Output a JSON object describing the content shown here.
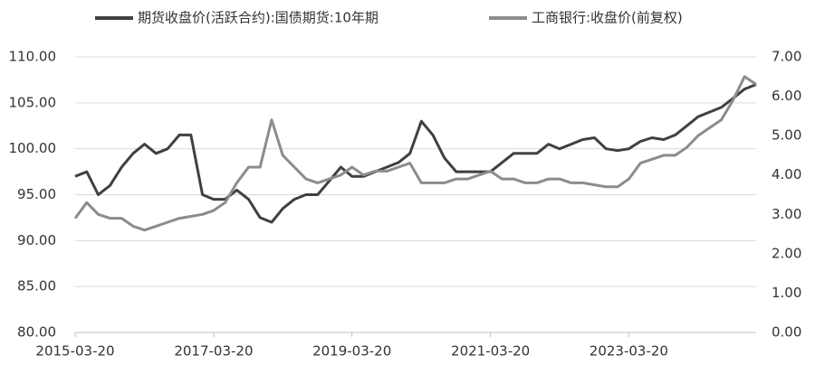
{
  "chart_data": {
    "type": "line",
    "x": [
      "2015-03-20",
      "2015-05-20",
      "2015-07-20",
      "2015-09-20",
      "2015-11-20",
      "2016-01-20",
      "2016-03-20",
      "2016-05-20",
      "2016-07-20",
      "2016-09-20",
      "2016-11-20",
      "2017-01-20",
      "2017-03-20",
      "2017-05-20",
      "2017-07-20",
      "2017-09-20",
      "2017-11-20",
      "2018-01-20",
      "2018-03-20",
      "2018-05-20",
      "2018-07-20",
      "2018-09-20",
      "2018-11-20",
      "2019-01-20",
      "2019-03-20",
      "2019-05-20",
      "2019-07-20",
      "2019-09-20",
      "2019-11-20",
      "2020-01-20",
      "2020-03-20",
      "2020-05-20",
      "2020-07-20",
      "2020-09-20",
      "2020-11-20",
      "2021-01-20",
      "2021-03-20",
      "2021-05-20",
      "2021-07-20",
      "2021-09-20",
      "2021-11-20",
      "2022-01-20",
      "2022-03-20",
      "2022-05-20",
      "2022-07-20",
      "2022-09-20",
      "2022-11-20",
      "2023-01-20",
      "2023-03-20",
      "2023-05-20",
      "2023-07-20",
      "2023-09-20",
      "2023-11-20",
      "2024-01-20",
      "2024-03-20",
      "2024-05-20",
      "2024-07-20",
      "2024-09-20",
      "2024-11-20",
      "2025-01-20"
    ],
    "series": [
      {
        "name": "期货收盘价(活跃合约):国债期货:10年期",
        "color": "#404040",
        "axis": "y",
        "values": [
          97,
          97.5,
          95,
          96,
          98,
          99.5,
          100.5,
          99.5,
          100,
          101.5,
          101.5,
          95,
          94.5,
          94.5,
          95.5,
          94.5,
          92.5,
          92,
          93.5,
          94.5,
          95,
          95,
          96.5,
          98,
          97,
          97,
          97.5,
          98,
          98.5,
          99.5,
          103,
          101.5,
          99,
          97.5,
          97.5,
          97.5,
          97.5,
          98.5,
          99.5,
          99.5,
          99.5,
          100.5,
          100,
          100.5,
          101,
          101.2,
          100,
          99.8,
          100,
          100.8,
          101.2,
          101,
          101.5,
          102.5,
          103.5,
          104,
          104.5,
          105.5,
          106.5,
          107
        ]
      },
      {
        "name": "工商银行:收盘价(前复权)",
        "color": "#8c8c8c",
        "axis": "y2",
        "values": [
          2.9,
          3.3,
          3.0,
          2.9,
          2.9,
          2.7,
          2.6,
          2.7,
          2.8,
          2.9,
          2.95,
          3.0,
          3.1,
          3.3,
          3.8,
          4.2,
          4.2,
          5.4,
          4.5,
          4.2,
          3.9,
          3.8,
          3.9,
          4.0,
          4.2,
          4.0,
          4.1,
          4.1,
          4.2,
          4.3,
          3.8,
          3.8,
          3.8,
          3.9,
          3.9,
          4.0,
          4.1,
          3.9,
          3.9,
          3.8,
          3.8,
          3.9,
          3.9,
          3.8,
          3.8,
          3.75,
          3.7,
          3.7,
          3.9,
          4.3,
          4.4,
          4.5,
          4.5,
          4.7,
          5.0,
          5.2,
          5.4,
          5.9,
          6.5,
          6.3
        ]
      }
    ],
    "xlim": [
      "2015-03-20",
      "2025-01-20"
    ],
    "xticks": [
      "2015-03-20",
      "2017-03-20",
      "2019-03-20",
      "2021-03-20",
      "2023-03-20"
    ],
    "ylim": [
      80,
      110
    ],
    "yticks": [
      {
        "value": 80,
        "label": "80.00"
      },
      {
        "value": 85,
        "label": "85.00"
      },
      {
        "value": 90,
        "label": "90.00"
      },
      {
        "value": 95,
        "label": "95.00"
      },
      {
        "value": 100,
        "label": "100.00"
      },
      {
        "value": 105,
        "label": "105.00"
      },
      {
        "value": 110,
        "label": "110.00"
      }
    ],
    "y2lim": [
      0,
      7
    ],
    "y2ticks": [
      {
        "value": 0,
        "label": "0.00"
      },
      {
        "value": 1,
        "label": "1.00"
      },
      {
        "value": 2,
        "label": "2.00"
      },
      {
        "value": 3,
        "label": "3.00"
      },
      {
        "value": 4,
        "label": "4.00"
      },
      {
        "value": 5,
        "label": "5.00"
      },
      {
        "value": 6,
        "label": "6.00"
      },
      {
        "value": 7,
        "label": "7.00"
      }
    ],
    "grid": true,
    "legend": "top"
  }
}
